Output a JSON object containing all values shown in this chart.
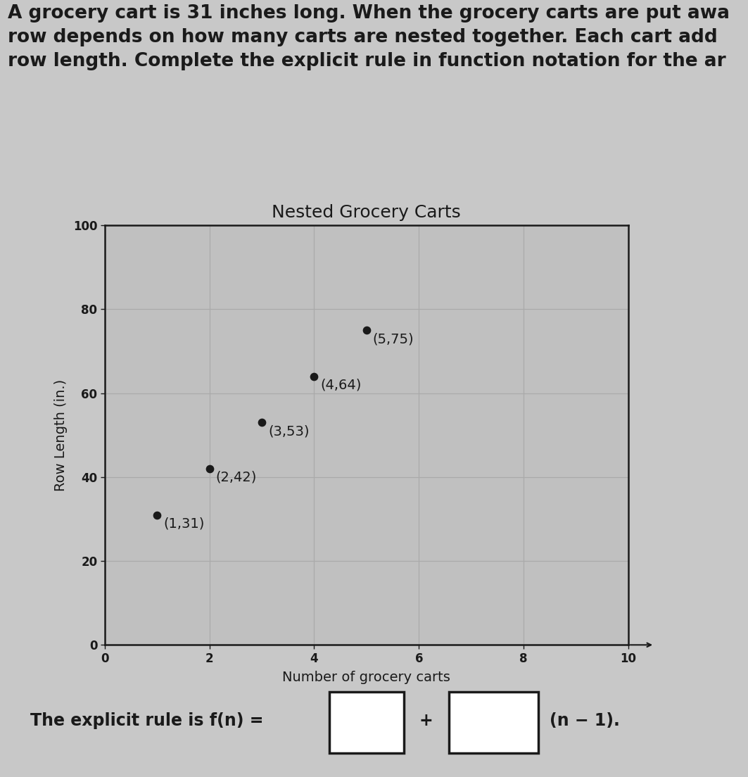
{
  "title": "Nested Grocery Carts",
  "xlabel": "Number of grocery carts",
  "ylabel": "Row Length (in.)",
  "points_x": [
    1,
    2,
    3,
    4,
    5
  ],
  "points_y": [
    31,
    42,
    53,
    64,
    75
  ],
  "point_labels": [
    "(1,31)",
    "(2,42)",
    "(3,53)",
    "(4,64)",
    "(5,75)"
  ],
  "xlim": [
    0,
    10
  ],
  "ylim": [
    0,
    100
  ],
  "xticks": [
    0,
    2,
    4,
    6,
    8,
    10
  ],
  "yticks": [
    0,
    20,
    40,
    60,
    80,
    100
  ],
  "point_color": "#1a1a1a",
  "point_size": 55,
  "grid_color": "#aaaaaa",
  "background_color": "#c8c8c8",
  "plot_bg_color": "#c0c0c0",
  "header_text_line1": "A grocery cart is 31 inches long. When the grocery carts are put awa",
  "header_text_line2": "row depends on how many carts are nested together. Each cart add",
  "header_text_line3": "row length. Complete the explicit rule in function notation for the ar",
  "footer_text": "The explicit rule is f(n) =",
  "footer_suffix": "(n − 1).",
  "title_fontsize": 18,
  "label_fontsize": 14,
  "tick_fontsize": 12,
  "header_fontsize": 19,
  "footer_fontsize": 17,
  "point_label_fontsize": 14
}
